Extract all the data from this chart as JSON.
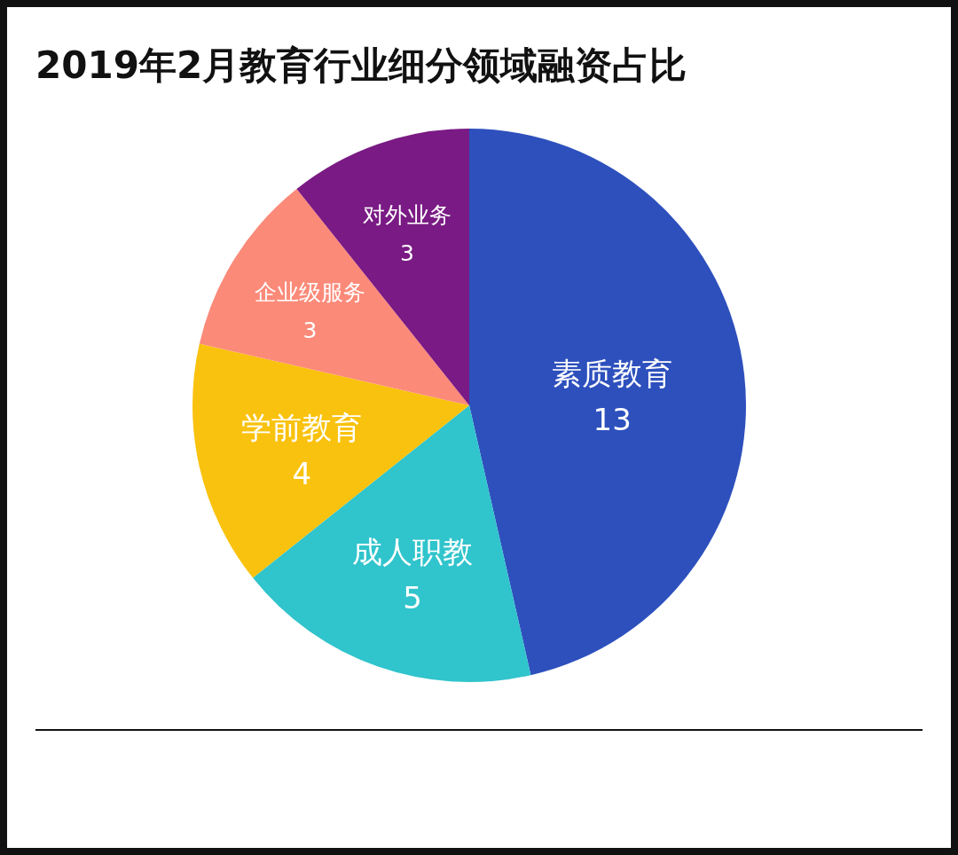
{
  "chart_data": {
    "type": "pie",
    "title": "2019年2月教育行业细分领域融资占比",
    "categories": [
      "素质教育",
      "成人职教",
      "学前教育",
      "企业级服务",
      "对外业务"
    ],
    "values": [
      13,
      5,
      4,
      3,
      3
    ],
    "colors": [
      "#2d50bd",
      "#30c4cc",
      "#f9c20e",
      "#fb8a79",
      "#7a1a84"
    ],
    "data_labels": true
  }
}
